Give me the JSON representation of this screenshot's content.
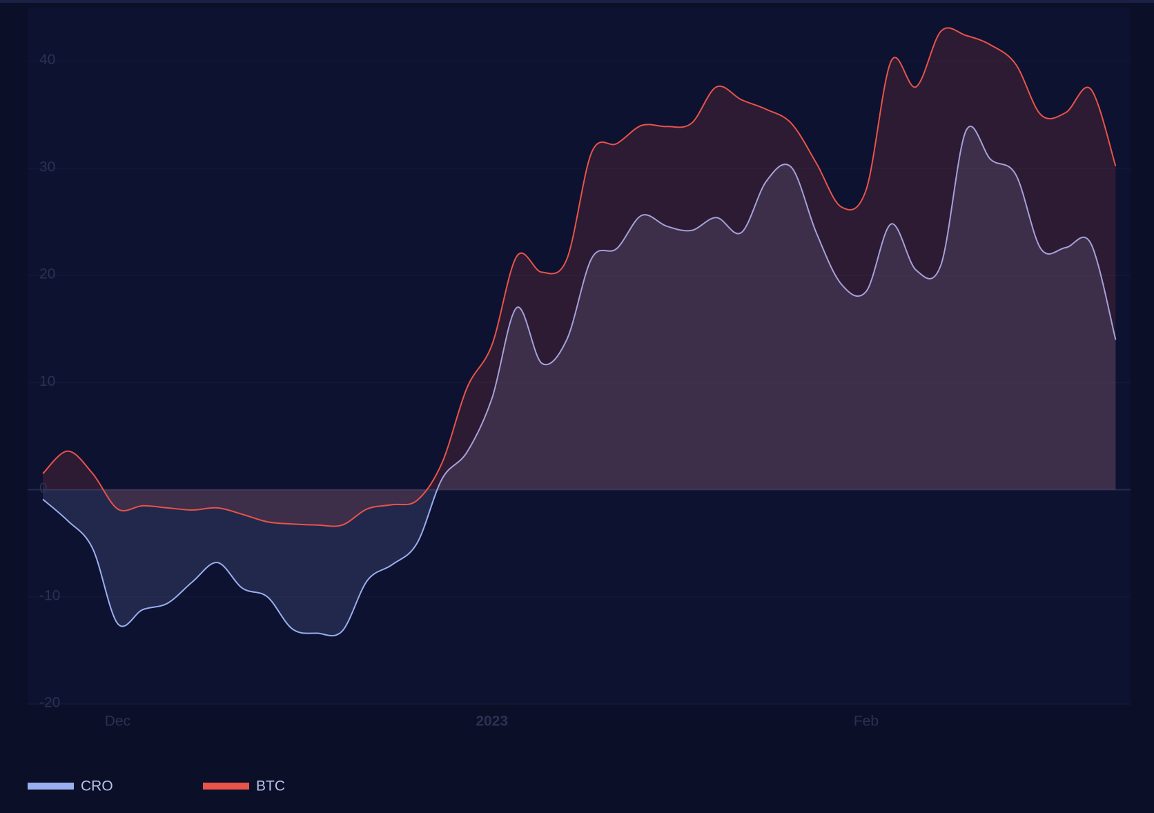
{
  "chart_data": {
    "type": "area",
    "categories": [
      null,
      null,
      null,
      "Dec",
      null,
      null,
      null,
      null,
      null,
      null,
      null,
      null,
      null,
      null,
      null,
      null,
      null,
      null,
      "2023",
      null,
      null,
      null,
      null,
      null,
      null,
      null,
      null,
      null,
      null,
      null,
      null,
      null,
      null,
      "Feb",
      null,
      null,
      null,
      null,
      null,
      null,
      null,
      null,
      null,
      null
    ],
    "series": [
      {
        "name": "CRO",
        "color": "#9aaef0",
        "values": [
          -0.9,
          -2.9,
          -5.5,
          -12.5,
          -11.2,
          -10.6,
          -8.6,
          -6.8,
          -9.2,
          -10.0,
          -13.0,
          -13.4,
          -13.2,
          -8.5,
          -7.0,
          -5.0,
          1.0,
          3.5,
          8.5,
          17.0,
          11.8,
          14.0,
          21.6,
          22.5,
          25.6,
          24.6,
          24.2,
          25.4,
          24.0,
          28.8,
          30.1,
          24.0,
          19.2,
          18.5,
          24.8,
          20.5,
          21.0,
          33.5,
          30.8,
          29.4,
          22.5,
          22.6,
          23.0,
          14.0
        ]
      },
      {
        "name": "BTC",
        "color": "#e8534a",
        "values": [
          1.5,
          3.6,
          1.5,
          -1.8,
          -1.5,
          -1.7,
          -1.9,
          -1.7,
          -2.3,
          -3.0,
          -3.2,
          -3.3,
          -3.3,
          -1.8,
          -1.4,
          -1.0,
          2.5,
          9.5,
          13.5,
          21.8,
          20.3,
          21.5,
          31.5,
          32.3,
          34.0,
          33.9,
          34.2,
          37.6,
          36.4,
          35.5,
          34.2,
          30.5,
          26.4,
          28.0,
          40.0,
          37.6,
          42.8,
          42.4,
          41.5,
          39.7,
          35.0,
          35.2,
          37.4,
          30.2
        ]
      }
    ],
    "ylim": [
      -20,
      45
    ],
    "yticks": [
      -20,
      -10,
      0,
      10,
      20,
      30,
      40
    ],
    "grid": true
  }
}
